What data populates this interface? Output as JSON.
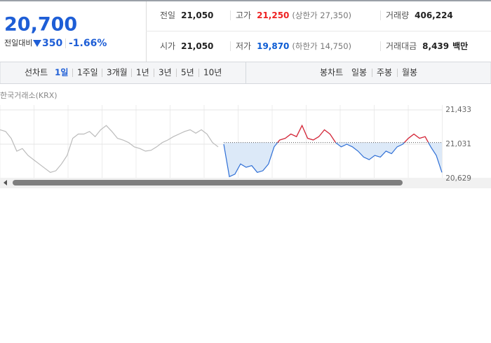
{
  "price": {
    "current": "20,700",
    "change_label": "전일대비",
    "change": "350",
    "change_rate": "-1.66%"
  },
  "stats": [
    [
      {
        "label": "전일",
        "value": "21,050"
      },
      {
        "label": "고가",
        "value": "21,250",
        "note": "(상한가 27,350)"
      },
      {
        "label": "거래량",
        "value": "406,224"
      }
    ],
    [
      {
        "label": "시가",
        "value": "21,050"
      },
      {
        "label": "저가",
        "value": "19,870",
        "note": "(하한가 14,750)"
      },
      {
        "label": "거래대금",
        "value": "8,439",
        "unit": "백만"
      }
    ]
  ],
  "tabs": {
    "line_label": "선차트",
    "line": [
      "1일",
      "1주일",
      "3개월",
      "1년",
      "3년",
      "5년",
      "10년"
    ],
    "candle_label": "봉차트",
    "candle": [
      "일봉",
      "주봉",
      "월봉"
    ]
  },
  "chart_data": {
    "type": "line",
    "source": "한국거래소(KRX)",
    "reference": 21050,
    "ylim": [
      20629,
      21433
    ],
    "yticks": [
      {
        "value": 21433,
        "label": "21,433"
      },
      {
        "value": 21031,
        "label": "21,031"
      },
      {
        "value": 20629,
        "label": "20,629"
      }
    ],
    "series": [
      {
        "color": "#bbbbbb",
        "values": [
          21200,
          21180,
          21100,
          20950,
          20980,
          20900,
          20850,
          20800,
          20750,
          20700,
          20720,
          20800,
          20900,
          21100,
          21150,
          21150,
          21180,
          21120,
          21200,
          21250,
          21180,
          21100,
          21080,
          21050,
          21000,
          20980,
          20950,
          20960,
          21000,
          21050,
          21080,
          21120,
          21150,
          21180,
          21200,
          21160,
          21200,
          21150,
          21050,
          21000,
          null,
          null,
          null,
          null,
          null,
          null,
          null,
          null,
          null,
          null,
          null,
          null,
          null,
          null,
          null,
          null,
          null,
          null,
          null,
          null,
          null,
          null,
          null,
          null,
          null,
          null,
          null,
          null,
          null,
          null,
          null,
          null,
          null,
          null,
          null,
          null,
          null,
          null,
          null,
          null
        ]
      },
      {
        "color": "#2f6fd6",
        "up_color": "#e8242b",
        "fill": "#dce9f8",
        "values": [
          null,
          null,
          null,
          null,
          null,
          null,
          null,
          null,
          null,
          null,
          null,
          null,
          null,
          null,
          null,
          null,
          null,
          null,
          null,
          null,
          null,
          null,
          null,
          null,
          null,
          null,
          null,
          null,
          null,
          null,
          null,
          null,
          null,
          null,
          null,
          null,
          null,
          null,
          null,
          null,
          21031,
          20650,
          20680,
          20800,
          20760,
          20780,
          20700,
          20720,
          20800,
          21000,
          21080,
          21100,
          21150,
          21120,
          21250,
          21100,
          21080,
          21120,
          21200,
          21150,
          21050,
          21000,
          21031,
          21000,
          20950,
          20880,
          20850,
          20900,
          20880,
          20950,
          20920,
          21000,
          21031,
          21100,
          21150,
          21100,
          21120,
          21000,
          20900,
          20700
        ]
      }
    ]
  }
}
